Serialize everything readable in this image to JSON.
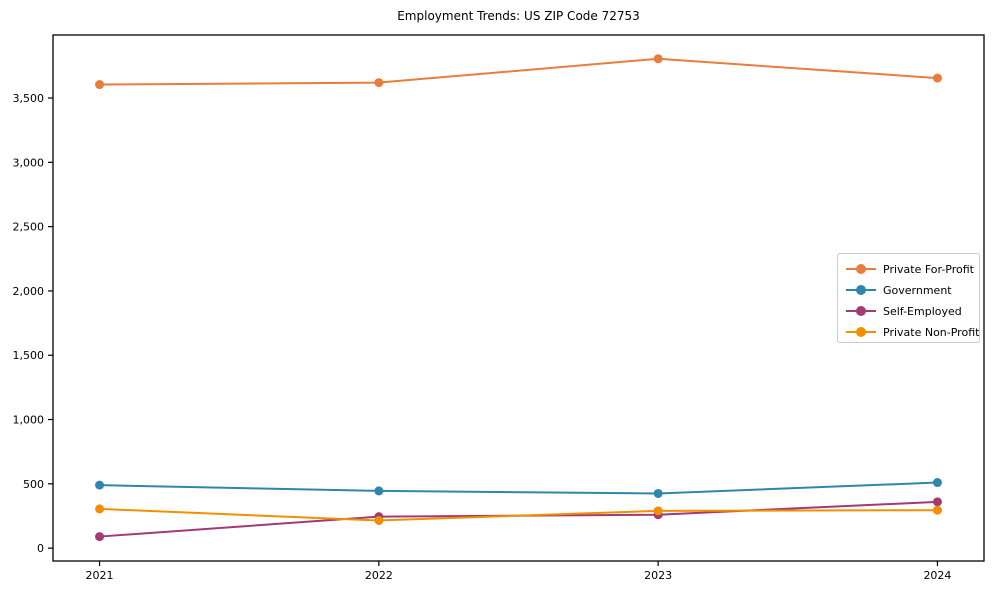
{
  "page": {
    "background": "#ffffff",
    "frame_color": "#000000"
  },
  "chart_data": {
    "type": "line",
    "title": "Employment Trends: US ZIP Code 72753",
    "xlabel": "",
    "ylabel": "",
    "grid": false,
    "legend_position": "center-right",
    "x": [
      2021,
      2022,
      2023,
      2024
    ],
    "xtick_labels": [
      "2021",
      "2022",
      "2023",
      "2024"
    ],
    "ytick_values": [
      0,
      500,
      1000,
      1500,
      2000,
      2500,
      3000,
      3500
    ],
    "ytick_labels": [
      "0",
      "500",
      "1,000",
      "1,500",
      "2,000",
      "2,500",
      "3,000",
      "3,500"
    ],
    "xlim": [
      2020.8333,
      2024.1667
    ],
    "ylim": [
      -100,
      3990
    ],
    "series": [
      {
        "name": "Private For-Profit",
        "color": "#E87D3C",
        "values": [
          3605,
          3620,
          3805,
          3655
        ]
      },
      {
        "name": "Government",
        "color": "#2E86AB",
        "values": [
          490,
          445,
          425,
          510
        ]
      },
      {
        "name": "Self-Employed",
        "color": "#A23B72",
        "values": [
          90,
          245,
          260,
          360
        ]
      },
      {
        "name": "Private Non-Profit",
        "color": "#F18F01",
        "values": [
          305,
          215,
          290,
          295
        ]
      }
    ]
  }
}
